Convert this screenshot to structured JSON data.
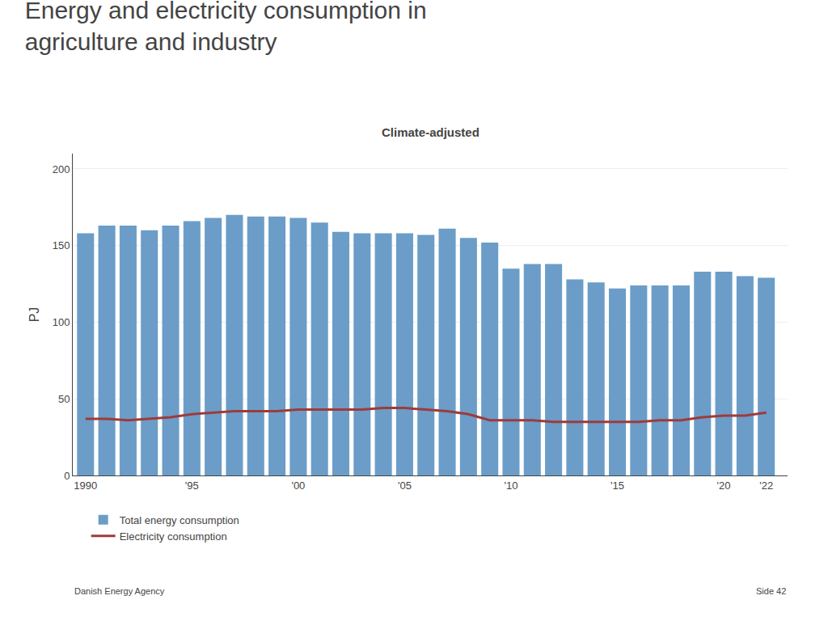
{
  "chart_data": {
    "type": "bar",
    "title": [
      "Energy and electricity consumption in",
      "agriculture and industry"
    ],
    "subtitle": "Climate-adjusted",
    "ylabel": "PJ",
    "annotations": [
      "Danish Energy Agency",
      "Side 42"
    ],
    "x": [
      1990,
      1991,
      1992,
      1993,
      1994,
      1995,
      1996,
      1997,
      1998,
      1999,
      2000,
      2001,
      2002,
      2003,
      2004,
      2005,
      2006,
      2007,
      2008,
      2009,
      2010,
      2011,
      2012,
      2013,
      2014,
      2015,
      2016,
      2017,
      2018,
      2019,
      2020,
      2021,
      2022
    ],
    "series": [
      {
        "name": "Total energy consumption",
        "type": "bar",
        "color": "#6B9DC8",
        "values": [
          158,
          163,
          163,
          160,
          163,
          166,
          168,
          170,
          169,
          169,
          168,
          165,
          159,
          158,
          158,
          158,
          157,
          161,
          155,
          152,
          135,
          138,
          138,
          128,
          126,
          122,
          124,
          124,
          124,
          133,
          133,
          130,
          129
        ]
      },
      {
        "name": "Electricity consumption",
        "type": "line",
        "color": "#9E3B3B",
        "values": [
          37,
          37,
          36,
          37,
          38,
          40,
          41,
          42,
          42,
          42,
          43,
          43,
          43,
          43,
          44,
          44,
          43,
          42,
          40,
          36,
          36,
          36,
          35,
          35,
          35,
          35,
          35,
          36,
          36,
          38,
          39,
          39,
          41
        ]
      }
    ],
    "xlim": [
      1989.4,
      2023.0
    ],
    "xticks": [
      1990,
      {
        "value": 1995,
        "label": "'95"
      },
      {
        "value": 2000,
        "label": "'00"
      },
      {
        "value": 2005,
        "label": "'05"
      },
      {
        "value": 2010,
        "label": "'10"
      },
      {
        "value": 2015,
        "label": "'15"
      },
      {
        "value": 2020,
        "label": "'20"
      },
      {
        "value": 2022,
        "label": "'22"
      }
    ],
    "ylim": [
      0,
      210
    ],
    "yticks": [
      0,
      50,
      100,
      150,
      200
    ],
    "grid": true,
    "legend": "bottom"
  }
}
